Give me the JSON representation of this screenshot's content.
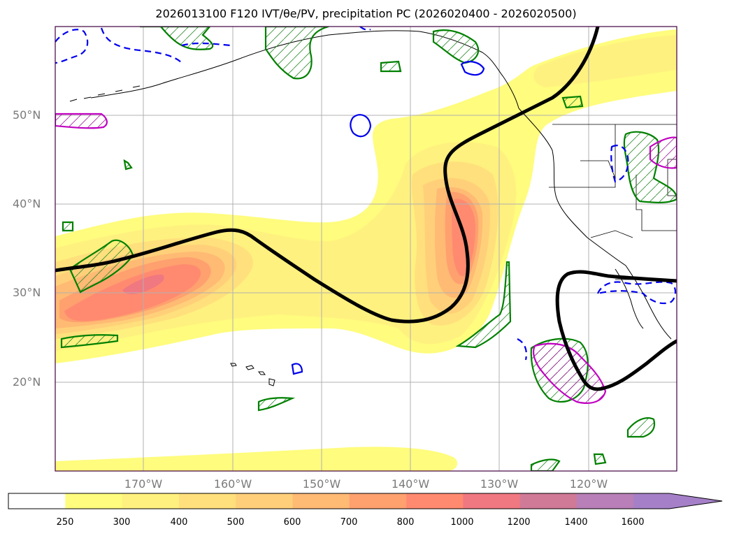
{
  "title": "2026013100 F120 IVT/θe/PV, precipitation PC (2026020400 - 2026020500)",
  "map": {
    "lat_labels": [
      "50°N",
      "40°N",
      "30°N",
      "20°N"
    ],
    "lon_labels": [
      "170°W",
      "160°W",
      "150°W",
      "140°W",
      "130°W",
      "120°W"
    ],
    "gridlines": true,
    "projection": "PlateCarree"
  },
  "colorbar": {
    "ticks": [
      "250",
      "300",
      "400",
      "500",
      "600",
      "700",
      "800",
      "1000",
      "1200",
      "1400",
      "1600"
    ],
    "colors": [
      "#ffffff",
      "#fffc7e",
      "#fff17f",
      "#ffe07c",
      "#ffd079",
      "#ffba74",
      "#ffa06f",
      "#ff8a70",
      "#f07880",
      "#d07a98",
      "#b87fb8",
      "#a580c8"
    ],
    "extend": "max"
  },
  "layers": {
    "ivt_fill": "IVT shaded",
    "theta_e_contour_color": "#000000",
    "pv_positive_color": "#008000",
    "pv_negative_color": "#0000ff",
    "precip_pc_color": "#c000c0"
  }
}
